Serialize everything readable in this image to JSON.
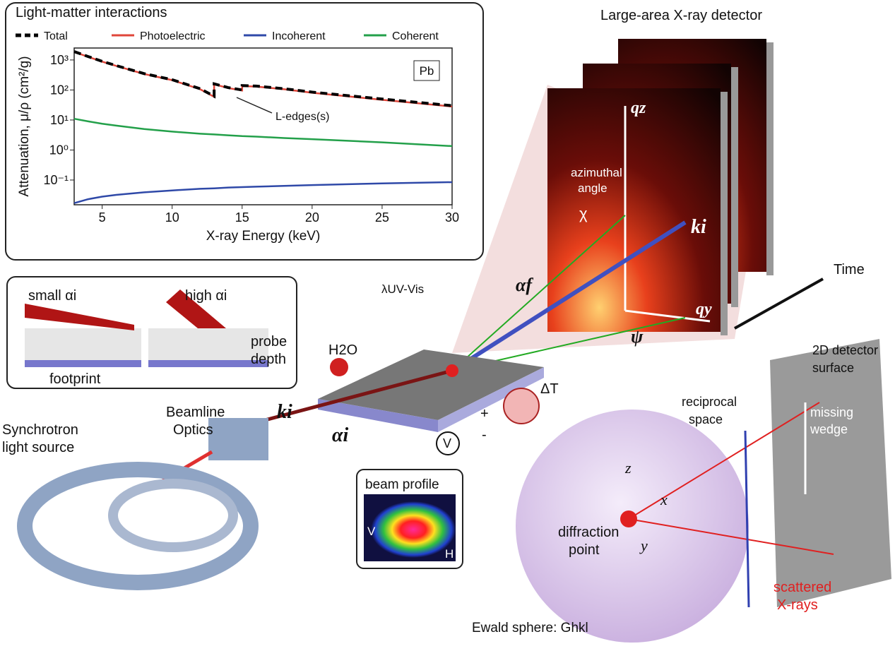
{
  "chart_data": {
    "type": "line",
    "title": "Light-matter interactions",
    "xlabel": "X-ray Energy (keV)",
    "ylabel": "Attenuation, μ/ρ (cm²/g)",
    "x": [
      3,
      4,
      5,
      6,
      8,
      10,
      12,
      13,
      13,
      14,
      15,
      15,
      16,
      18,
      20,
      25,
      30
    ],
    "series": [
      {
        "name": "Total",
        "color": "#000000",
        "dashed": true,
        "values": [
          1900,
          1300,
          900,
          650,
          350,
          220,
          110,
          62,
          160,
          120,
          100,
          140,
          135,
          110,
          85,
          50,
          30
        ]
      },
      {
        "name": "Photoelectric",
        "color": "#e0463a",
        "values": [
          1850,
          1270,
          880,
          635,
          340,
          213,
          106,
          59,
          155,
          116,
          96,
          135,
          130,
          106,
          81,
          47,
          28
        ]
      },
      {
        "name": "Incoherent",
        "color": "#2f49a8",
        "values": [
          0.017,
          0.023,
          0.028,
          0.032,
          0.039,
          0.045,
          0.051,
          0.053,
          0.053,
          0.056,
          0.058,
          0.058,
          0.06,
          0.064,
          0.068,
          0.077,
          0.085
        ]
      },
      {
        "name": "Coherent",
        "color": "#23a04a",
        "values": [
          11,
          9,
          7.5,
          6.5,
          5,
          4.1,
          3.5,
          3.3,
          3.3,
          3.1,
          2.9,
          2.9,
          2.8,
          2.5,
          2.3,
          1.8,
          1.35
        ]
      }
    ],
    "xlim": [
      3,
      30
    ],
    "xticks": [
      5,
      10,
      15,
      20,
      25,
      30
    ],
    "ylim": [
      0.015,
      2500
    ],
    "ylog": true,
    "yticks": [
      {
        "value": 0.1,
        "label": "10⁻¹"
      },
      {
        "value": 1,
        "label": "10⁰"
      },
      {
        "value": 10,
        "label": "10¹"
      },
      {
        "value": 100,
        "label": "10²"
      },
      {
        "value": 1000,
        "label": "10³"
      }
    ],
    "annotations": [
      "L-edges(s)",
      "Pb"
    ]
  },
  "diagram": {
    "labels": [
      "Large-area X-ray detector",
      "qz",
      "azimuthal",
      "angle",
      "χ",
      "ki",
      "Time",
      "αf",
      "qy",
      "ψ",
      "λUV-Vis",
      "H2O",
      "ΔT",
      "ki",
      "αi",
      "V",
      "+",
      "-",
      "small αi",
      "high αi",
      "probe",
      "depth",
      "footprint",
      "Beamline",
      "Optics",
      "Synchrotron",
      "light source",
      "beam profile",
      "V",
      "H",
      "2D detector",
      "surface",
      "reciprocal",
      "space",
      "missing",
      "wedge",
      "z",
      "x",
      "y",
      "diffraction",
      "point",
      "scattered",
      "X-rays",
      "Ewald sphere: Ghkl"
    ]
  }
}
